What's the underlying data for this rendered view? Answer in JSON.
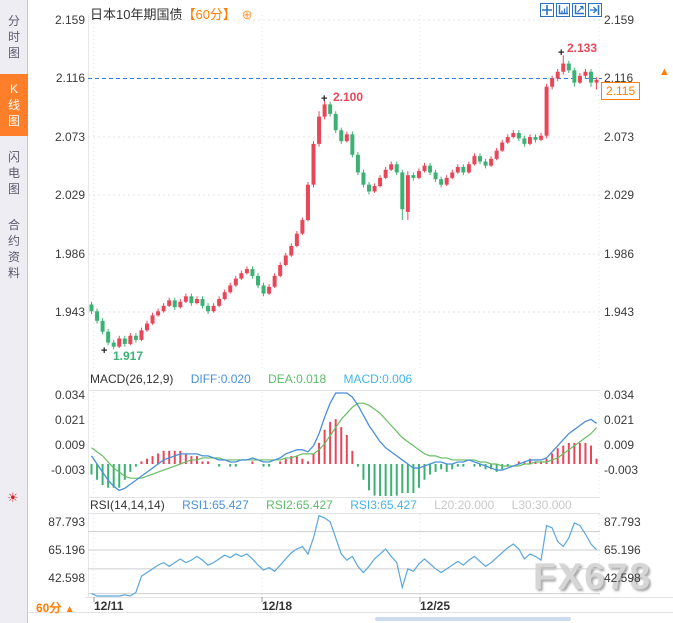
{
  "ui": {
    "sidebar": {
      "items": [
        {
          "label": "分时图",
          "active": false
        },
        {
          "label": "K线图",
          "active": true
        },
        {
          "label": "闪电图",
          "active": false
        },
        {
          "label": "合约资料",
          "active": false
        }
      ]
    },
    "title": {
      "instrument": "日本10年期国债",
      "interval_badge": "【60分】",
      "plus_icon": "⊕"
    },
    "price_axis": {
      "ticks": [
        "2.159",
        "2.116",
        "2.073",
        "2.029",
        "1.986",
        "1.943"
      ],
      "current_tag": "2.115",
      "up_arrow": "▲"
    },
    "macd_header": {
      "name": "MACD(26,12,9)",
      "diff": "DIFF:0.020",
      "dea": "DEA:0.018",
      "macd": "MACD:0.006",
      "ticks": [
        "0.034",
        "0.021",
        "0.009",
        "-0.003"
      ]
    },
    "rsi_header": {
      "name": "RSI(14,14,14)",
      "rsi1": "RSI1:65.427",
      "rsi2": "RSI2:65.427",
      "rsi3": "RSI3:65.427",
      "l20": "L20:20.000",
      "l30": "L30:30.000",
      "ticks": [
        "87.793",
        "65.196",
        "42.598"
      ]
    },
    "annotations": {
      "high": "2.133",
      "mid_peak": "2.100",
      "low": "1.917"
    },
    "time_axis": {
      "interval_label": "60分",
      "toggle_arrow": "▲",
      "dates": [
        "12/11",
        "12/18",
        "12/25"
      ]
    },
    "watermark": "FX678",
    "colors": {
      "up": "#e8475a",
      "down": "#3bb273",
      "diff_line": "#4a90d9",
      "dea_line": "#67bd63",
      "rsi_line": "#5aa7dc",
      "dashed_price": "#2f80d6",
      "accent_orange": "#ff7e00",
      "toolbar_blue": "#2a72c5"
    }
  },
  "chart_data": [
    {
      "type": "candlestick",
      "title": "日本10年期国债",
      "interval": "60分",
      "y_ticks": [
        2.159,
        2.116,
        2.073,
        2.029,
        1.986,
        1.943
      ],
      "current_price": 2.115,
      "prev_ref_line": 2.116,
      "x_labels": [
        "12/11",
        "12/18",
        "12/25"
      ],
      "annotated_points": {
        "high": 2.133,
        "mid_peak": 2.1,
        "low": 1.917
      },
      "candles": [
        [
          1.95,
          1.952,
          1.943,
          1.945
        ],
        [
          1.945,
          1.947,
          1.936,
          1.938
        ],
        [
          1.938,
          1.94,
          1.928,
          1.93
        ],
        [
          1.93,
          1.932,
          1.92,
          1.922
        ],
        [
          1.922,
          1.924,
          1.917,
          1.919
        ],
        [
          1.919,
          1.927,
          1.918,
          1.925
        ],
        [
          1.925,
          1.927,
          1.919,
          1.921
        ],
        [
          1.921,
          1.929,
          1.92,
          1.927
        ],
        [
          1.927,
          1.929,
          1.922,
          1.924
        ],
        [
          1.924,
          1.933,
          1.923,
          1.931
        ],
        [
          1.931,
          1.938,
          1.93,
          1.936
        ],
        [
          1.936,
          1.944,
          1.935,
          1.942
        ],
        [
          1.942,
          1.947,
          1.941,
          1.945
        ],
        [
          1.945,
          1.951,
          1.944,
          1.949
        ],
        [
          1.949,
          1.955,
          1.948,
          1.953
        ],
        [
          1.953,
          1.955,
          1.946,
          1.948
        ],
        [
          1.948,
          1.954,
          1.947,
          1.952
        ],
        [
          1.952,
          1.958,
          1.951,
          1.956
        ],
        [
          1.956,
          1.958,
          1.949,
          1.951
        ],
        [
          1.951,
          1.956,
          1.95,
          1.954
        ],
        [
          1.954,
          1.956,
          1.947,
          1.949
        ],
        [
          1.949,
          1.951,
          1.943,
          1.945
        ],
        [
          1.945,
          1.951,
          1.944,
          1.949
        ],
        [
          1.949,
          1.956,
          1.948,
          1.954
        ],
        [
          1.954,
          1.961,
          1.953,
          1.959
        ],
        [
          1.959,
          1.966,
          1.958,
          1.964
        ],
        [
          1.964,
          1.971,
          1.963,
          1.969
        ],
        [
          1.969,
          1.975,
          1.968,
          1.973
        ],
        [
          1.973,
          1.978,
          1.972,
          1.976
        ],
        [
          1.976,
          1.978,
          1.969,
          1.971
        ],
        [
          1.971,
          1.973,
          1.962,
          1.964
        ],
        [
          1.964,
          1.966,
          1.956,
          1.958
        ],
        [
          1.958,
          1.965,
          1.957,
          1.963
        ],
        [
          1.963,
          1.973,
          1.962,
          1.971
        ],
        [
          1.971,
          1.981,
          1.97,
          1.979
        ],
        [
          1.979,
          1.988,
          1.978,
          1.986
        ],
        [
          1.986,
          1.995,
          1.985,
          1.993
        ],
        [
          1.993,
          2.004,
          1.992,
          2.002
        ],
        [
          2.002,
          2.014,
          2.001,
          2.012
        ],
        [
          2.012,
          2.04,
          2.011,
          2.038
        ],
        [
          2.038,
          2.07,
          2.036,
          2.068
        ],
        [
          2.068,
          2.092,
          2.066,
          2.088
        ],
        [
          2.088,
          2.1,
          2.086,
          2.097
        ],
        [
          2.097,
          2.099,
          2.088,
          2.09
        ],
        [
          2.09,
          2.092,
          2.076,
          2.078
        ],
        [
          2.078,
          2.08,
          2.068,
          2.07
        ],
        [
          2.07,
          2.077,
          2.069,
          2.075
        ],
        [
          2.075,
          2.077,
          2.058,
          2.06
        ],
        [
          2.06,
          2.062,
          2.045,
          2.047
        ],
        [
          2.047,
          2.049,
          2.036,
          2.038
        ],
        [
          2.038,
          2.04,
          2.031,
          2.033
        ],
        [
          2.033,
          2.039,
          2.032,
          2.037
        ],
        [
          2.037,
          2.045,
          2.036,
          2.043
        ],
        [
          2.043,
          2.051,
          2.042,
          2.049
        ],
        [
          2.049,
          2.055,
          2.048,
          2.053
        ],
        [
          2.053,
          2.055,
          2.045,
          2.047
        ],
        [
          2.047,
          2.049,
          2.012,
          2.02
        ],
        [
          2.018,
          2.048,
          2.012,
          2.045
        ],
        [
          2.045,
          2.047,
          2.041,
          2.043
        ],
        [
          2.043,
          2.05,
          2.042,
          2.048
        ],
        [
          2.048,
          2.054,
          2.047,
          2.052
        ],
        [
          2.052,
          2.054,
          2.045,
          2.047
        ],
        [
          2.047,
          2.049,
          2.04,
          2.042
        ],
        [
          2.042,
          2.044,
          2.036,
          2.038
        ],
        [
          2.038,
          2.045,
          2.037,
          2.043
        ],
        [
          2.043,
          2.049,
          2.042,
          2.047
        ],
        [
          2.047,
          2.053,
          2.046,
          2.051
        ],
        [
          2.051,
          2.053,
          2.045,
          2.047
        ],
        [
          2.047,
          2.055,
          2.046,
          2.053
        ],
        [
          2.053,
          2.061,
          2.052,
          2.059
        ],
        [
          2.059,
          2.061,
          2.053,
          2.055
        ],
        [
          2.055,
          2.057,
          2.05,
          2.052
        ],
        [
          2.052,
          2.059,
          2.051,
          2.057
        ],
        [
          2.057,
          2.065,
          2.056,
          2.063
        ],
        [
          2.063,
          2.071,
          2.062,
          2.069
        ],
        [
          2.069,
          2.075,
          2.068,
          2.073
        ],
        [
          2.073,
          2.078,
          2.072,
          2.076
        ],
        [
          2.076,
          2.078,
          2.07,
          2.072
        ],
        [
          2.072,
          2.074,
          2.066,
          2.068
        ],
        [
          2.068,
          2.075,
          2.067,
          2.073
        ],
        [
          2.073,
          2.075,
          2.069,
          2.071
        ],
        [
          2.071,
          2.076,
          2.07,
          2.074
        ],
        [
          2.074,
          2.112,
          2.072,
          2.11
        ],
        [
          2.11,
          2.118,
          2.108,
          2.116
        ],
        [
          2.116,
          2.123,
          2.114,
          2.121
        ],
        [
          2.121,
          2.133,
          2.119,
          2.127
        ],
        [
          2.127,
          2.129,
          2.12,
          2.122
        ],
        [
          2.122,
          2.124,
          2.11,
          2.113
        ],
        [
          2.113,
          2.12,
          2.112,
          2.118
        ],
        [
          2.118,
          2.123,
          2.116,
          2.121
        ],
        [
          2.121,
          2.123,
          2.11,
          2.113
        ],
        [
          2.113,
          2.117,
          2.108,
          2.115
        ]
      ]
    },
    {
      "type": "macd",
      "params": [
        26,
        12,
        9
      ],
      "latest": {
        "diff": 0.02,
        "dea": 0.018,
        "macd": 0.006
      },
      "y_ticks": [
        0.034,
        0.021,
        0.009,
        -0.003
      ],
      "diff": [
        0.004,
        0.0,
        -0.004,
        -0.008,
        -0.011,
        -0.013,
        -0.012,
        -0.01,
        -0.008,
        -0.006,
        -0.004,
        -0.002,
        0.0,
        0.002,
        0.003,
        0.004,
        0.005,
        0.005,
        0.005,
        0.005,
        0.004,
        0.004,
        0.003,
        0.002,
        0.002,
        0.001,
        0.001,
        0.002,
        0.002,
        0.003,
        0.002,
        0.001,
        0.001,
        0.002,
        0.003,
        0.005,
        0.006,
        0.007,
        0.007,
        0.006,
        0.009,
        0.015,
        0.023,
        0.03,
        0.035,
        0.036,
        0.036,
        0.033,
        0.029,
        0.024,
        0.019,
        0.015,
        0.011,
        0.008,
        0.006,
        0.004,
        0.002,
        0.0,
        -0.002,
        -0.002,
        -0.001,
        0.0,
        0.001,
        0.001,
        0.0,
        0.0,
        0.001,
        0.001,
        0.002,
        0.001,
        0.0,
        -0.001,
        -0.002,
        -0.003,
        -0.003,
        -0.002,
        -0.001,
        0.0,
        0.001,
        0.002,
        0.002,
        0.002,
        0.003,
        0.006,
        0.009,
        0.012,
        0.015,
        0.017,
        0.019,
        0.021,
        0.022,
        0.02
      ],
      "dea": [
        0.008,
        0.006,
        0.004,
        0.001,
        -0.002,
        -0.004,
        -0.006,
        -0.007,
        -0.007,
        -0.007,
        -0.006,
        -0.005,
        -0.004,
        -0.003,
        -0.002,
        -0.001,
        0.0,
        0.001,
        0.002,
        0.002,
        0.003,
        0.003,
        0.003,
        0.003,
        0.002,
        0.002,
        0.002,
        0.002,
        0.002,
        0.002,
        0.002,
        0.002,
        0.002,
        0.002,
        0.002,
        0.003,
        0.003,
        0.004,
        0.005,
        0.005,
        0.005,
        0.007,
        0.01,
        0.014,
        0.018,
        0.022,
        0.025,
        0.028,
        0.03,
        0.03,
        0.029,
        0.027,
        0.025,
        0.022,
        0.019,
        0.016,
        0.013,
        0.011,
        0.009,
        0.007,
        0.005,
        0.004,
        0.004,
        0.003,
        0.003,
        0.002,
        0.002,
        0.002,
        0.002,
        0.002,
        0.001,
        0.001,
        0.0,
        0.0,
        -0.001,
        -0.001,
        -0.001,
        -0.001,
        0.0,
        0.0,
        0.001,
        0.001,
        0.001,
        0.002,
        0.003,
        0.005,
        0.007,
        0.009,
        0.011,
        0.013,
        0.015,
        0.018
      ]
    },
    {
      "type": "rsi",
      "params": [
        14,
        14,
        14
      ],
      "latest": {
        "rsi1": 65.427,
        "rsi2": 65.427,
        "rsi3": 65.427,
        "l20": 20.0,
        "l30": 30.0
      },
      "y_ticks": [
        87.793,
        65.196,
        42.598
      ],
      "grid_levels": [
        80,
        65.196,
        50,
        30
      ],
      "values": [
        30,
        28,
        26,
        28,
        25,
        27,
        29,
        28,
        31,
        44,
        47,
        50,
        53,
        55,
        52,
        55,
        58,
        55,
        57,
        60,
        57,
        53,
        55,
        58,
        61,
        59,
        62,
        60,
        62,
        58,
        53,
        49,
        51,
        48,
        53,
        58,
        63,
        66,
        68,
        62,
        75,
        93,
        91,
        88,
        75,
        62,
        57,
        60,
        52,
        47,
        52,
        58,
        62,
        66,
        60,
        55,
        35,
        50,
        48,
        54,
        58,
        54,
        50,
        47,
        50,
        53,
        56,
        53,
        57,
        60,
        56,
        52,
        55,
        59,
        63,
        67,
        70,
        66,
        58,
        62,
        60,
        57,
        85,
        83,
        72,
        68,
        75,
        87,
        85,
        78,
        70,
        65.427
      ]
    }
  ]
}
